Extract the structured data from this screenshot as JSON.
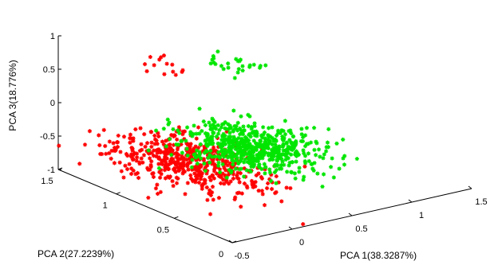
{
  "chart_data": {
    "type": "scatter",
    "projection": "3d",
    "title": "",
    "xlabel": "PCA 1(38.3287%)",
    "ylabel": "PCA 2(27.2239%)",
    "zlabel": "PCA 3(18.776%)",
    "xlim": [
      -0.5,
      1.5
    ],
    "ylim": [
      0,
      1.5
    ],
    "zlim": [
      -1,
      1
    ],
    "xticks": [
      "-0.5",
      "0",
      "0.5",
      "1",
      "1.5"
    ],
    "yticks": [
      "0",
      "0.5",
      "1",
      "1.5"
    ],
    "zticks": [
      "-1",
      "-0.5",
      "0",
      "0.5",
      "1"
    ],
    "grid": false,
    "legend": "none",
    "series": [
      {
        "color": "#ff0000",
        "marker": "star",
        "clusters": [
          {
            "center": [
              -0.05,
              0.85,
              -0.6
            ],
            "spread": [
              0.22,
              0.28,
              0.06
            ],
            "count": 520
          },
          {
            "center": [
              0.1,
              1.25,
              0.5
            ],
            "spread": [
              0.08,
              0.1,
              0.005
            ],
            "count": 14
          }
        ]
      },
      {
        "color": "#00e600",
        "marker": "star",
        "clusters": [
          {
            "center": [
              0.45,
              0.8,
              -0.55
            ],
            "spread": [
              0.2,
              0.22,
              0.05
            ],
            "count": 600
          },
          {
            "center": [
              0.5,
              1.05,
              0.5
            ],
            "spread": [
              0.14,
              0.12,
              0.005
            ],
            "count": 26
          }
        ]
      }
    ]
  }
}
